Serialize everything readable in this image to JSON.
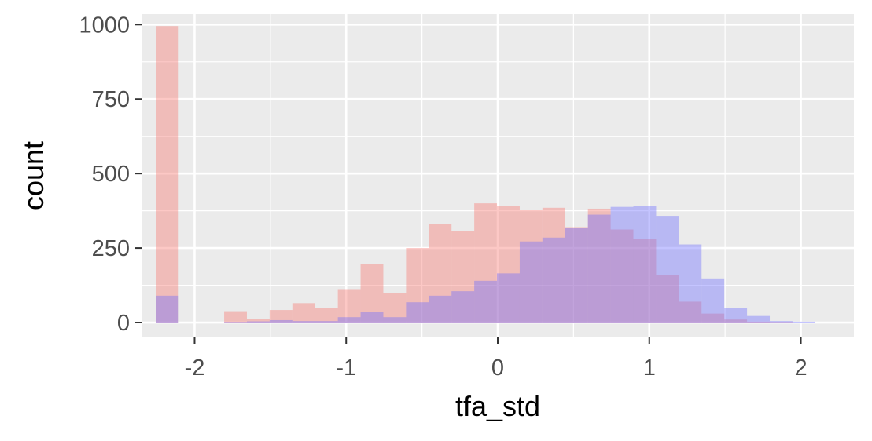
{
  "chart_data": {
    "type": "bar",
    "title": "",
    "xlabel": "tfa_std",
    "ylabel": "count",
    "xlim": [
      -2.35,
      2.35
    ],
    "ylim": [
      -50,
      1035
    ],
    "x_ticks": [
      -2,
      -1,
      0,
      1,
      2
    ],
    "x_tick_labels": [
      "-2",
      "-1",
      "0",
      "1",
      "2"
    ],
    "y_ticks": [
      0,
      250,
      500,
      750,
      1000
    ],
    "y_tick_labels": [
      "0",
      "250",
      "500",
      "750",
      "1000"
    ],
    "grid": true,
    "background": "#ebebeb",
    "bin_edges": [
      -2.255,
      -2.105,
      -1.955,
      -1.805,
      -1.655,
      -1.505,
      -1.355,
      -1.205,
      -1.055,
      -0.905,
      -0.755,
      -0.605,
      -0.455,
      -0.305,
      -0.155,
      -0.005,
      0.145,
      0.295,
      0.445,
      0.595,
      0.745,
      0.895,
      1.045,
      1.195,
      1.345,
      1.495,
      1.645,
      1.795,
      1.945,
      2.095
    ],
    "series": [
      {
        "color": "#f8766d",
        "opacity": 0.4,
        "values": [
          995,
          0,
          0,
          38,
          12,
          42,
          65,
          50,
          112,
          195,
          98,
          250,
          330,
          308,
          400,
          390,
          378,
          385,
          320,
          382,
          312,
          280,
          160,
          70,
          30,
          10,
          3,
          2,
          0
        ]
      },
      {
        "color": "#6b6bff",
        "opacity": 0.4,
        "values": [
          90,
          0,
          0,
          2,
          4,
          8,
          5,
          5,
          18,
          35,
          18,
          68,
          90,
          105,
          140,
          165,
          272,
          285,
          318,
          362,
          388,
          392,
          358,
          262,
          148,
          50,
          22,
          5,
          3
        ]
      }
    ]
  }
}
